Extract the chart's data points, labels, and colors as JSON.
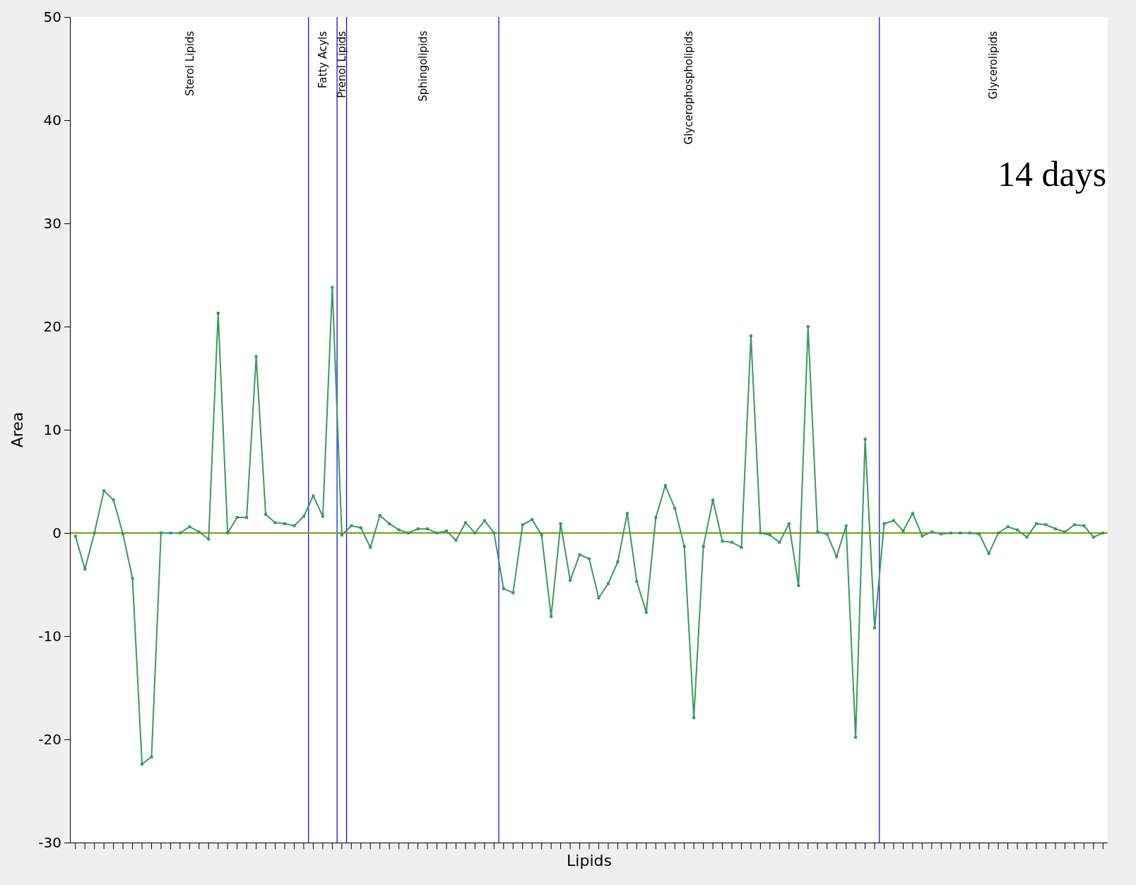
{
  "chart_data": {
    "type": "line",
    "xlabel": "Lipids",
    "ylabel": "Area",
    "categories": [
      null,
      null,
      null,
      null,
      null,
      null,
      null,
      null,
      null,
      null,
      null,
      null,
      null,
      null,
      null,
      null,
      null,
      null,
      null,
      null,
      null,
      null,
      null,
      null,
      null,
      null,
      null,
      null,
      null,
      null,
      null,
      null,
      null,
      null,
      null,
      null,
      null,
      null,
      null,
      null,
      null,
      null,
      null,
      null,
      null,
      null,
      null,
      null,
      null,
      null,
      null,
      null,
      null,
      null,
      null,
      null,
      null,
      null,
      null,
      null,
      null,
      null,
      null,
      null,
      null,
      null,
      null,
      null,
      null,
      null,
      null,
      null,
      null,
      null,
      null,
      null,
      null,
      null,
      null,
      null,
      null,
      null,
      null,
      null,
      null,
      null,
      null,
      null,
      null,
      null,
      null,
      null,
      null,
      null,
      null,
      null,
      null,
      null,
      null,
      null,
      null,
      null,
      null,
      null,
      null,
      null,
      null,
      null,
      null
    ],
    "series": [
      {
        "color": "#3a9a5e",
        "marker": "square",
        "values": [
          -0.3,
          -3.5,
          0,
          4.1,
          3.2,
          -0.1,
          -4.4,
          -22.4,
          -21.7,
          0,
          0,
          0,
          0.6,
          0.1,
          -0.6,
          21.3,
          0,
          1.5,
          1.5,
          17.1,
          1.8,
          1.0,
          0.9,
          0.7,
          1.6,
          3.6,
          1.6,
          23.8,
          -0.2,
          0.7,
          0.5,
          -1.4,
          1.7,
          0.9,
          0.3,
          0,
          0.4,
          0.4,
          0,
          0.2,
          -0.7,
          1.0,
          0,
          1.2,
          0,
          -5.4,
          -5.8,
          0.8,
          1.3,
          -0.2,
          -8.1,
          0.9,
          -4.6,
          -2.1,
          -2.5,
          -6.3,
          -4.9,
          -2.8,
          1.9,
          -4.7,
          -7.7,
          1.5,
          4.6,
          2.4,
          -1.3,
          -17.9,
          -1.3,
          3.2,
          -0.8,
          -0.9,
          -1.4,
          19.1,
          0,
          -0.2,
          -0.9,
          0.9,
          -5.1,
          20.0,
          0.1,
          -0.1,
          -2.3,
          0.7,
          -19.8,
          9.1,
          -9.2,
          0.9,
          1.2,
          0.2,
          1.9,
          -0.3,
          0.1,
          -0.1,
          0,
          0,
          0,
          -0.1,
          -2.0,
          0,
          0.6,
          0.3,
          -0.4,
          0.9,
          0.8,
          0.4,
          0.1,
          0.8,
          0.7,
          -0.4,
          0
        ]
      }
    ],
    "ylim": [
      -30,
      50
    ],
    "yticks": [
      -30,
      -20,
      -10,
      0,
      10,
      20,
      30,
      40,
      50
    ],
    "grid": false,
    "ref_lines": [
      {
        "axis": "y",
        "value": 0,
        "color": "#7a9a1a"
      }
    ],
    "annotations": [
      "Sterol Lipids",
      "Fatty Acyls",
      "Prenol Lipids",
      "Sphingolipids",
      "Glycerophospholipids",
      "Glycerolipids",
      "14 days"
    ]
  }
}
